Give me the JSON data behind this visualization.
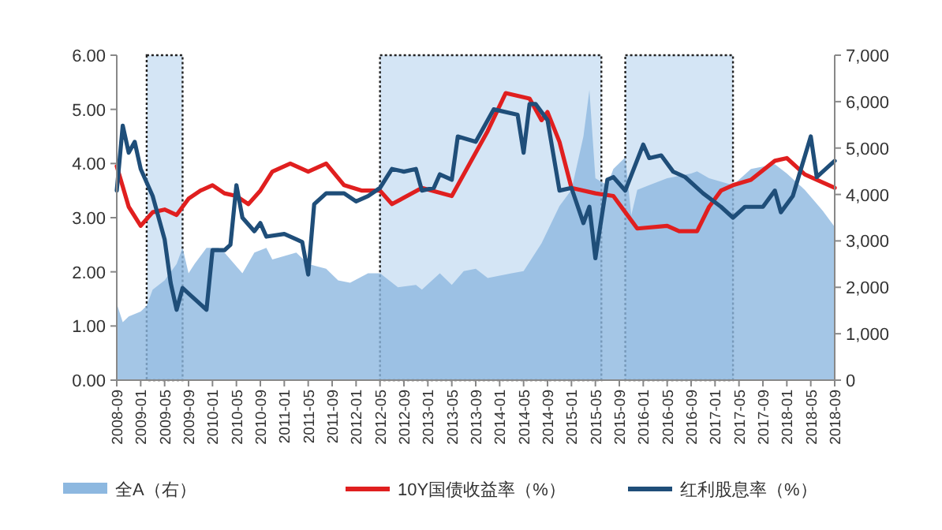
{
  "chart_data": {
    "type": "line",
    "xlim": [
      "2008-09",
      "2018-09"
    ],
    "xticks": [
      "2008-09",
      "2009-01",
      "2009-05",
      "2009-09",
      "2010-01",
      "2010-05",
      "2010-09",
      "2011-01",
      "2011-05",
      "2011-09",
      "2012-01",
      "2012-05",
      "2012-09",
      "2013-01",
      "2013-05",
      "2013-09",
      "2014-01",
      "2014-05",
      "2014-09",
      "2015-01",
      "2015-05",
      "2015-09",
      "2016-01",
      "2016-05",
      "2016-09",
      "2017-01",
      "2017-05",
      "2017-09",
      "2018-01",
      "2018-05",
      "2018-09"
    ],
    "ylim": [
      0,
      6
    ],
    "yticks": [
      {
        "value": 0,
        "label": "0.00"
      },
      {
        "value": 1,
        "label": "1.00"
      },
      {
        "value": 2,
        "label": "2.00"
      },
      {
        "value": 3,
        "label": "3.00"
      },
      {
        "value": 4,
        "label": "4.00"
      },
      {
        "value": 5,
        "label": "5.00"
      },
      {
        "value": 6,
        "label": "6.00"
      }
    ],
    "y2lim": [
      0,
      7000
    ],
    "y2ticks": [
      0,
      {
        "value": 1000,
        "label": "1,000"
      },
      {
        "value": 2000,
        "label": "2,000"
      },
      {
        "value": 3000,
        "label": "3,000"
      },
      {
        "value": 4000,
        "label": "4,000"
      },
      {
        "value": 5000,
        "label": "5,000"
      },
      {
        "value": 6000,
        "label": "6,000"
      },
      {
        "value": 7000,
        "label": "7,000"
      }
    ],
    "legend": "bottom",
    "series": [
      {
        "name": "全A（右）",
        "type": "area",
        "axis": "y2",
        "color": "#8db8e0",
        "x": [
          "2008-09",
          "2008-10",
          "2008-11",
          "2009-01",
          "2009-02",
          "2009-03",
          "2009-05",
          "2009-07",
          "2009-08",
          "2009-09",
          "2009-10",
          "2009-12",
          "2010-02",
          "2010-03",
          "2010-06",
          "2010-08",
          "2010-10",
          "2010-11",
          "2011-03",
          "2011-05",
          "2011-08",
          "2011-10",
          "2011-12",
          "2012-03",
          "2012-05",
          "2012-08",
          "2012-11",
          "2012-12",
          "2013-03",
          "2013-05",
          "2013-07",
          "2013-09",
          "2013-11",
          "2014-03",
          "2014-05",
          "2014-08",
          "2014-11",
          "2015-01",
          "2015-03",
          "2015-04",
          "2015-05",
          "2015-07",
          "2015-08",
          "2015-10",
          "2015-11",
          "2015-12",
          "2016-02",
          "2016-05",
          "2016-09",
          "2016-10",
          "2016-12",
          "2017-04",
          "2017-07",
          "2017-11",
          "2018-01",
          "2018-04",
          "2018-07",
          "2018-09"
        ],
        "values": [
          1650,
          1250,
          1370,
          1480,
          1600,
          1950,
          2150,
          2500,
          2850,
          2300,
          2500,
          2850,
          2850,
          2750,
          2300,
          2750,
          2850,
          2600,
          2750,
          2500,
          2400,
          2150,
          2100,
          2300,
          2300,
          2000,
          2050,
          1950,
          2300,
          2050,
          2350,
          2400,
          2200,
          2300,
          2350,
          2950,
          3750,
          4100,
          5250,
          6250,
          4350,
          4200,
          4550,
          4800,
          3550,
          4100,
          4200,
          4350,
          4450,
          4500,
          4350,
          4200,
          4550,
          4650,
          4450,
          4100,
          3650,
          3300
        ]
      },
      {
        "name": "10Y国债收益率（%）",
        "type": "line",
        "color": "#e01f1f",
        "x": [
          "2008-09",
          "2008-11",
          "2009-01",
          "2009-03",
          "2009-05",
          "2009-07",
          "2009-09",
          "2009-11",
          "2010-01",
          "2010-03",
          "2010-05",
          "2010-07",
          "2010-09",
          "2010-11",
          "2011-02",
          "2011-05",
          "2011-08",
          "2011-11",
          "2012-02",
          "2012-05",
          "2012-07",
          "2012-12",
          "2013-05",
          "2013-08",
          "2013-11",
          "2014-02",
          "2014-06",
          "2014-08",
          "2014-09",
          "2014-11",
          "2015-01",
          "2015-05",
          "2015-08",
          "2015-10",
          "2015-12",
          "2016-05",
          "2016-07",
          "2016-10",
          "2016-12",
          "2017-02",
          "2017-04",
          "2017-07",
          "2017-11",
          "2018-01",
          "2018-04",
          "2018-07",
          "2018-09"
        ],
        "values": [
          3.95,
          3.2,
          2.85,
          3.1,
          3.15,
          3.05,
          3.35,
          3.5,
          3.6,
          3.45,
          3.4,
          3.25,
          3.5,
          3.85,
          4.0,
          3.85,
          4.0,
          3.6,
          3.5,
          3.5,
          3.25,
          3.55,
          3.4,
          4.0,
          4.6,
          5.3,
          5.2,
          4.8,
          4.95,
          4.4,
          3.55,
          3.45,
          3.4,
          3.1,
          2.8,
          2.85,
          2.75,
          2.75,
          3.2,
          3.5,
          3.6,
          3.7,
          4.05,
          4.1,
          3.8,
          3.65,
          3.55
        ]
      },
      {
        "name": "红利股息率（%）",
        "type": "line",
        "color": "#1f4e79",
        "x": [
          "2008-09",
          "2008-10",
          "2008-11",
          "2008-12",
          "2009-01",
          "2009-03",
          "2009-05",
          "2009-06",
          "2009-07",
          "2009-08",
          "2009-09",
          "2009-12",
          "2010-01",
          "2010-03",
          "2010-04",
          "2010-05",
          "2010-06",
          "2010-08",
          "2010-09",
          "2010-10",
          "2011-01",
          "2011-03",
          "2011-04",
          "2011-05",
          "2011-06",
          "2011-08",
          "2011-11",
          "2012-01",
          "2012-03",
          "2012-05",
          "2012-07",
          "2012-09",
          "2012-11",
          "2012-12",
          "2013-02",
          "2013-03",
          "2013-05",
          "2013-06",
          "2013-09",
          "2013-12",
          "2014-04",
          "2014-05",
          "2014-06",
          "2014-07",
          "2014-09",
          "2014-11",
          "2015-01",
          "2015-03",
          "2015-04",
          "2015-05",
          "2015-07",
          "2015-08",
          "2015-10",
          "2016-01",
          "2016-02",
          "2016-04",
          "2016-06",
          "2016-08",
          "2016-11",
          "2017-02",
          "2017-04",
          "2017-06",
          "2017-09",
          "2017-11",
          "2017-12",
          "2018-02",
          "2018-05",
          "2018-06",
          "2018-07",
          "2018-09"
        ],
        "values": [
          3.5,
          4.7,
          4.2,
          4.4,
          3.9,
          3.4,
          2.6,
          1.8,
          1.3,
          1.7,
          1.6,
          1.3,
          2.4,
          2.4,
          2.5,
          3.6,
          3.0,
          2.75,
          2.9,
          2.65,
          2.7,
          2.6,
          2.55,
          1.95,
          3.25,
          3.45,
          3.45,
          3.3,
          3.4,
          3.55,
          3.9,
          3.85,
          3.9,
          3.5,
          3.55,
          3.8,
          3.7,
          4.5,
          4.4,
          5.0,
          4.9,
          4.2,
          5.1,
          5.1,
          4.8,
          3.5,
          3.55,
          2.9,
          3.2,
          2.25,
          3.7,
          3.75,
          3.5,
          4.35,
          4.1,
          4.15,
          3.85,
          3.75,
          3.45,
          3.2,
          3.0,
          3.2,
          3.2,
          3.5,
          3.1,
          3.4,
          4.5,
          3.75,
          3.85,
          4.05
        ]
      }
    ],
    "bands": [
      {
        "axis": "x",
        "from": "2009-02",
        "to": "2009-08",
        "color": "#d4e5f5"
      },
      {
        "axis": "x",
        "from": "2012-05",
        "to": "2015-06",
        "color": "#d4e5f5"
      },
      {
        "axis": "x",
        "from": "2015-10",
        "to": "2017-04",
        "color": "#d4e5f5"
      }
    ]
  }
}
